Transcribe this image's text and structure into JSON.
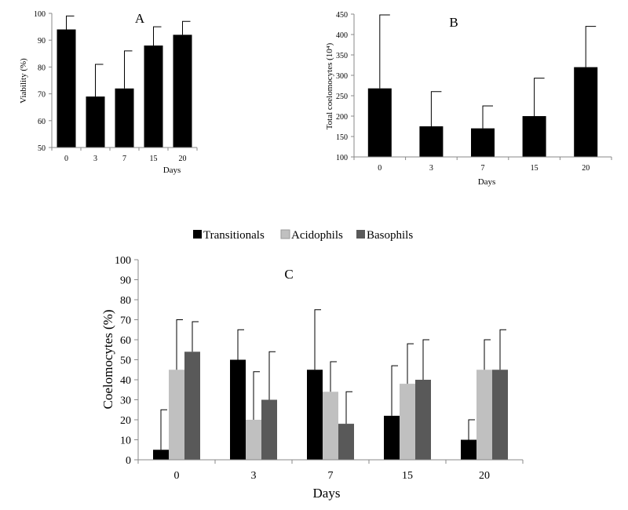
{
  "colors": {
    "transitionals": "#000000",
    "acidophils": "#c0c0c0",
    "basophils": "#595959"
  },
  "chart_data": [
    {
      "panel": "A",
      "type": "bar",
      "title": "A",
      "xlabel": "Days",
      "ylabel": "Viability (%)",
      "categories": [
        "0",
        "3",
        "7",
        "15",
        "20"
      ],
      "values": [
        94,
        69,
        72,
        88,
        92
      ],
      "errors": [
        5,
        12,
        14,
        7,
        5
      ],
      "ylim": [
        50,
        100
      ],
      "yticks": [
        50,
        60,
        70,
        80,
        90,
        100
      ],
      "grid": false
    },
    {
      "panel": "B",
      "type": "bar",
      "title": "B",
      "xlabel": "Days",
      "ylabel": "Total coelomocytes (10⁴)",
      "categories": [
        "0",
        "3",
        "7",
        "15",
        "20"
      ],
      "values": [
        268,
        175,
        170,
        200,
        320
      ],
      "errors": [
        180,
        85,
        55,
        93,
        100
      ],
      "ylim": [
        100,
        450
      ],
      "yticks": [
        100,
        150,
        200,
        250,
        300,
        350,
        400,
        450
      ],
      "grid": false
    },
    {
      "panel": "C",
      "type": "bar",
      "title": "C",
      "xlabel": "Days",
      "ylabel": "Coelomocytes (%)",
      "categories": [
        "0",
        "3",
        "7",
        "15",
        "20"
      ],
      "series": [
        {
          "name": "Transitionals",
          "values": [
            5,
            50,
            45,
            22,
            10
          ],
          "errors": [
            20,
            15,
            30,
            25,
            10
          ]
        },
        {
          "name": "Acidophils",
          "values": [
            45,
            20,
            34,
            38,
            45
          ],
          "errors": [
            25,
            24,
            15,
            20,
            15
          ]
        },
        {
          "name": "Basophils",
          "values": [
            54,
            30,
            18,
            40,
            45
          ],
          "errors": [
            15,
            24,
            16,
            20,
            20
          ]
        }
      ],
      "ylim": [
        0,
        100
      ],
      "yticks": [
        0,
        10,
        20,
        30,
        40,
        50,
        60,
        70,
        80,
        90,
        100
      ],
      "legend": "top",
      "grid": false
    }
  ]
}
